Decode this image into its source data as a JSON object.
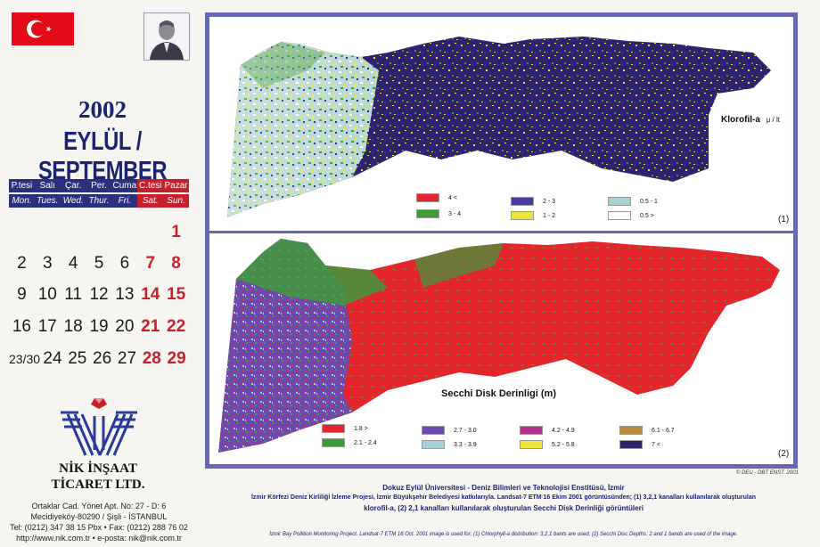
{
  "calendar": {
    "year": "2002",
    "month": "EYLÜL / SEPTEMBER",
    "days_tr": [
      "P.tesi",
      "Salı",
      "Çar.",
      "Per.",
      "Cuma",
      "C.tesi",
      "Pazar"
    ],
    "days_en": [
      "Mon.",
      "Tues.",
      "Wed.",
      "Thur.",
      "Fri.",
      "Sat.",
      "Sun."
    ],
    "weeks": [
      [
        "",
        "",
        "",
        "",
        "",
        "",
        "1"
      ],
      [
        "2",
        "3",
        "4",
        "5",
        "6",
        "7",
        "8"
      ],
      [
        "9",
        "10",
        "11",
        "12",
        "13",
        "14",
        "15"
      ],
      [
        "16",
        "17",
        "18",
        "19",
        "20",
        "21",
        "22"
      ],
      [
        "23/30",
        "24",
        "25",
        "26",
        "27",
        "28",
        "29"
      ]
    ]
  },
  "company": {
    "line1": "NİK İNŞAAT",
    "line2": "TİCARET LTD.",
    "address1": "Ortaklar Cad. Yönet Apt. No: 27 - D: 6",
    "address2": "Mecidiyeköy-80290 / Şişli - İSTANBUL",
    "tel": "Tel: (0212) 347 38 15 Pbx • Fax: (0212) 288 76 02",
    "web": "http://www.nik.com.tr • e-posta: nik@nik.com.tr"
  },
  "panel1": {
    "title": "Klorofil-a",
    "unit": "μ / lt",
    "number": "(1)",
    "legend": [
      {
        "label": "4 <",
        "color": "#e4262c"
      },
      {
        "label": "3 - 4",
        "color": "#3f9a3a"
      },
      {
        "label": "2 - 3",
        "color": "#4a3aa6"
      },
      {
        "label": "1 - 2",
        "color": "#ece43a"
      },
      {
        "label": "0.5 - 1",
        "color": "#a6d2d6"
      },
      {
        "label": "0.5 >",
        "color": "#ffffff"
      }
    ]
  },
  "panel2": {
    "title": "Secchi Disk Derinligi (m)",
    "number": "(2)",
    "legend": [
      {
        "label": "1.8 >",
        "color": "#e4262c"
      },
      {
        "label": "2.1 - 2.4",
        "color": "#3f9a3a"
      },
      {
        "label": "2.7 - 3.0",
        "color": "#6a4ab0"
      },
      {
        "label": "3.3 - 3.9",
        "color": "#a6d2d6"
      },
      {
        "label": "4.2 - 4.9",
        "color": "#b0308a"
      },
      {
        "label": "5.2 - 5.8",
        "color": "#ece43a"
      },
      {
        "label": "6.1 - 6.7",
        "color": "#b88a3a"
      },
      {
        "label": "7 <",
        "color": "#2a2366"
      }
    ]
  },
  "copyright": "© DEU - DBT ENST. 2001",
  "caption": {
    "line1": "Dokuz Eylül Üniversitesi - Deniz Bilimleri ve Teknolojisi Enstitüsü, İzmir",
    "line2": "İzmir Körfezi Deniz Kirliliği İzleme Projesi, İzmir Büyükşehir Belediyesi katkılarıyla. Landsat-7 ETM 16 Ekim 2001 görüntüsünden; (1) 3,2,1 kanalları kullanılarak oluşturulan",
    "line3": "klorofil-a, (2) 2,1 kanalları kullanılarak oluşturulan Secchi Disk Derinliği görüntüleri",
    "line4": "İzmir Bay Pollition Monitoring Project. Landsat-7 ETM 16 Oct. 2001 image is used for; (1) Chlorphyll-a distribution: 3,2,1 bants are used, (2) Secchi Disc Depths: 2 and 1 bands are used of the image."
  },
  "colors": {
    "frame": "#6a67b2",
    "title_blue": "#1c2470",
    "weekend_red": "#c8202a",
    "turkish_flag_red": "#e30a17"
  }
}
